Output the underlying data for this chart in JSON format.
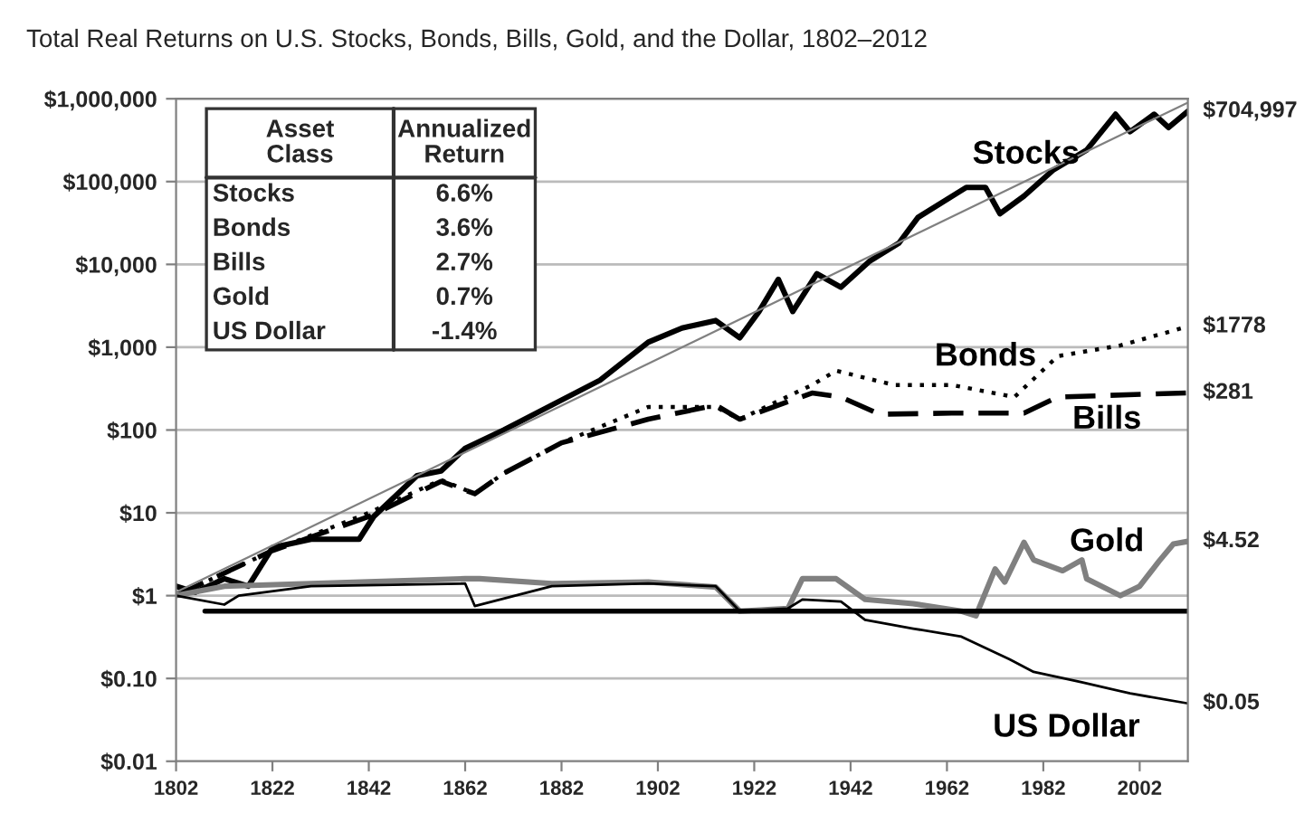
{
  "chart_data": {
    "type": "line",
    "title": "Total Real Returns on U.S. Stocks, Bonds, Bills, Gold, and the Dollar, 1802–2012",
    "log": "y",
    "grid": "y",
    "legend": false,
    "xlim": [
      1802,
      2012
    ],
    "xticks": [
      1802,
      1822,
      1842,
      1862,
      1882,
      1902,
      1922,
      1942,
      1962,
      1982,
      2002
    ],
    "ylim": [
      0.01,
      1000000
    ],
    "yticks": [
      {
        "value": 0.01,
        "label": "$0.01"
      },
      {
        "value": 0.1,
        "label": "$0.10"
      },
      {
        "value": 1,
        "label": "$1"
      },
      {
        "value": 10,
        "label": "$10"
      },
      {
        "value": 100,
        "label": "$100"
      },
      {
        "value": 1000,
        "label": "$1,000"
      },
      {
        "value": 10000,
        "label": "$10,000"
      },
      {
        "value": 100000,
        "label": "$100,000"
      },
      {
        "value": 1000000,
        "label": "$1,000,000"
      }
    ],
    "series": [
      {
        "name": "Stocks",
        "color": "#000000",
        "line_style": "solid",
        "x": [
          1802,
          1806,
          1812,
          1817,
          1822,
          1830,
          1840,
          1843,
          1852,
          1857,
          1862,
          1870,
          1880,
          1890,
          1900,
          1907,
          1914,
          1919,
          1923,
          1927,
          1930,
          1935,
          1940,
          1946,
          1952,
          1956,
          1966,
          1970,
          1973,
          1978,
          1984,
          1991,
          1997,
          2000,
          2005,
          2008,
          2012
        ],
        "values": [
          1.3,
          1.1,
          1.6,
          1.3,
          3.8,
          4.8,
          4.8,
          9,
          28,
          32,
          60,
          100,
          200,
          400,
          1150,
          1700,
          2100,
          1300,
          2700,
          6600,
          2700,
          7700,
          5300,
          11000,
          18000,
          37000,
          85000,
          85000,
          41000,
          67000,
          137000,
          240000,
          650000,
          400000,
          650000,
          450000,
          704997
        ]
      },
      {
        "name": "Bonds",
        "color": "#000000",
        "line_style": "dotted",
        "x": [
          1802,
          1822,
          1842,
          1857,
          1864,
          1870,
          1882,
          1900,
          1914,
          1919,
          1934,
          1939,
          1951,
          1963,
          1976,
          1985,
          1998,
          2012
        ],
        "values": [
          1.0,
          3.5,
          10,
          25,
          17,
          30,
          70,
          190,
          190,
          135,
          350,
          520,
          350,
          350,
          250,
          780,
          1050,
          1778
        ]
      },
      {
        "name": "Bills",
        "color": "#000000",
        "line_style": "dashed",
        "x": [
          1802,
          1822,
          1842,
          1857,
          1864,
          1870,
          1882,
          1900,
          1914,
          1919,
          1934,
          1940,
          1948,
          1963,
          1978,
          1985,
          2012
        ],
        "values": [
          1.0,
          3.5,
          9,
          24,
          17,
          30,
          70,
          135,
          200,
          135,
          280,
          250,
          155,
          160,
          160,
          250,
          281
        ]
      },
      {
        "name": "Gold",
        "color": "#808080",
        "line_style": "solid",
        "x": [
          1802,
          1812,
          1830,
          1862,
          1865,
          1880,
          1900,
          1914,
          1919,
          1929,
          1932,
          1939,
          1945,
          1955,
          1965,
          1968,
          1972,
          1974,
          1978,
          1980,
          1986,
          1990,
          1991,
          1998,
          2002,
          2006,
          2009,
          2012
        ],
        "values": [
          1.0,
          1.3,
          1.4,
          1.6,
          1.6,
          1.4,
          1.46,
          1.27,
          0.65,
          0.7,
          1.6,
          1.6,
          0.9,
          0.8,
          0.65,
          0.57,
          2.1,
          1.46,
          4.4,
          2.7,
          2.0,
          2.7,
          1.6,
          1.0,
          1.3,
          2.6,
          4.2,
          4.52
        ]
      },
      {
        "name": "US Dollar",
        "color": "#000000",
        "line_style": "solid",
        "x": [
          1802,
          1812,
          1815,
          1830,
          1862,
          1864,
          1880,
          1900,
          1914,
          1919,
          1929,
          1932,
          1940,
          1945,
          1955,
          1965,
          1975,
          1980,
          1990,
          2000,
          2012
        ],
        "values": [
          1.0,
          0.78,
          1.0,
          1.3,
          1.4,
          0.75,
          1.3,
          1.4,
          1.3,
          0.65,
          0.7,
          0.9,
          0.85,
          0.51,
          0.4,
          0.32,
          0.17,
          0.12,
          0.09,
          0.066,
          0.05
        ]
      },
      {
        "color": "#808080",
        "line_style": "solid",
        "x": [
          1802,
          2012
        ],
        "values": [
          1.1,
          900000
        ]
      },
      {
        "color": "#000000",
        "line_style": "solid",
        "x": [
          1808,
          2012
        ],
        "values": [
          0.65,
          0.65
        ]
      }
    ],
    "annotations": [
      "Asset Class",
      "Annualized Return",
      "Stocks",
      "6.6%",
      "Bonds",
      "3.6%",
      "Bills",
      "2.7%",
      "Gold",
      "0.7%",
      "US Dollar",
      "-1.4%",
      "$704,997",
      "$1778",
      "$281",
      "$4.52",
      "$0.05"
    ]
  }
}
